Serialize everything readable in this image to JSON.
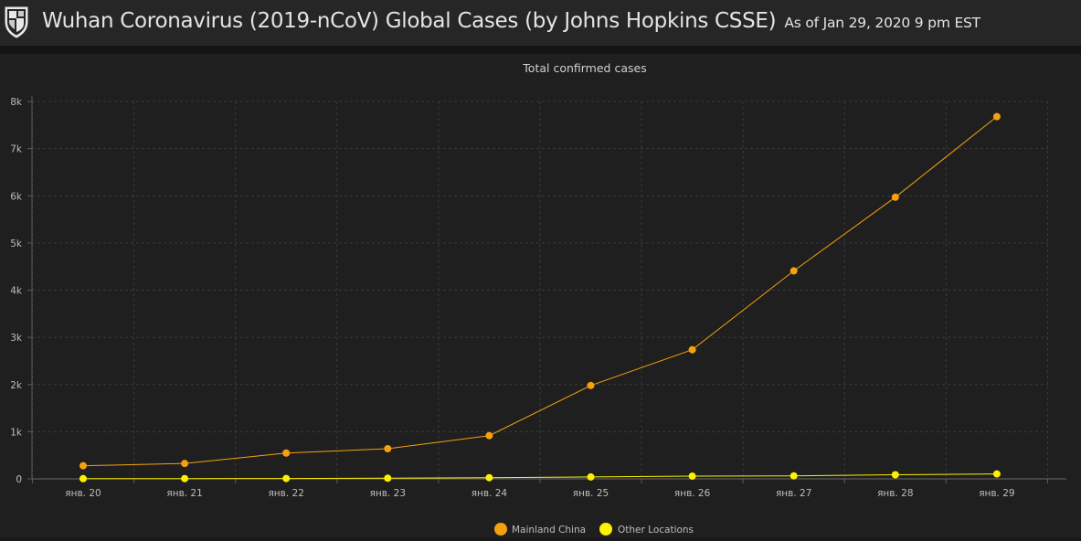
{
  "header": {
    "title": "Wuhan Coronavirus (2019-nCoV) Global Cases (by Johns Hopkins CSSE)",
    "as_of": "As of Jan 29, 2020 9 pm EST",
    "logo_icon": "jhu-shield-icon"
  },
  "colors": {
    "background": "#1f1f1f",
    "header_background": "#262626",
    "mainland_china": "#f5a10f",
    "other_locations": "#fdf100",
    "grid": "#3a3a3a",
    "text": "#bdbdbd"
  },
  "chart_data": {
    "type": "line",
    "title": "Total confirmed cases",
    "xlabel": "",
    "ylabel": "",
    "categories": [
      "янв. 20",
      "янв. 21",
      "янв. 22",
      "янв. 23",
      "янв. 24",
      "янв. 25",
      "янв. 26",
      "янв. 27",
      "янв. 28",
      "янв. 29"
    ],
    "y_ticks": [
      "0",
      "1k",
      "2k",
      "3k",
      "4k",
      "5k",
      "6k",
      "7k",
      "8k"
    ],
    "ylim": [
      0,
      8000
    ],
    "grid": true,
    "legend_position": "bottom-center",
    "series": [
      {
        "name": "Mainland China",
        "color": "#f5a10f",
        "values": [
          278,
          326,
          547,
          639,
          916,
          1979,
          2737,
          4409,
          5970,
          7678
        ]
      },
      {
        "name": "Other Locations",
        "color": "#fdf100",
        "values": [
          4,
          6,
          8,
          14,
          25,
          40,
          57,
          64,
          87,
          105
        ]
      }
    ]
  }
}
